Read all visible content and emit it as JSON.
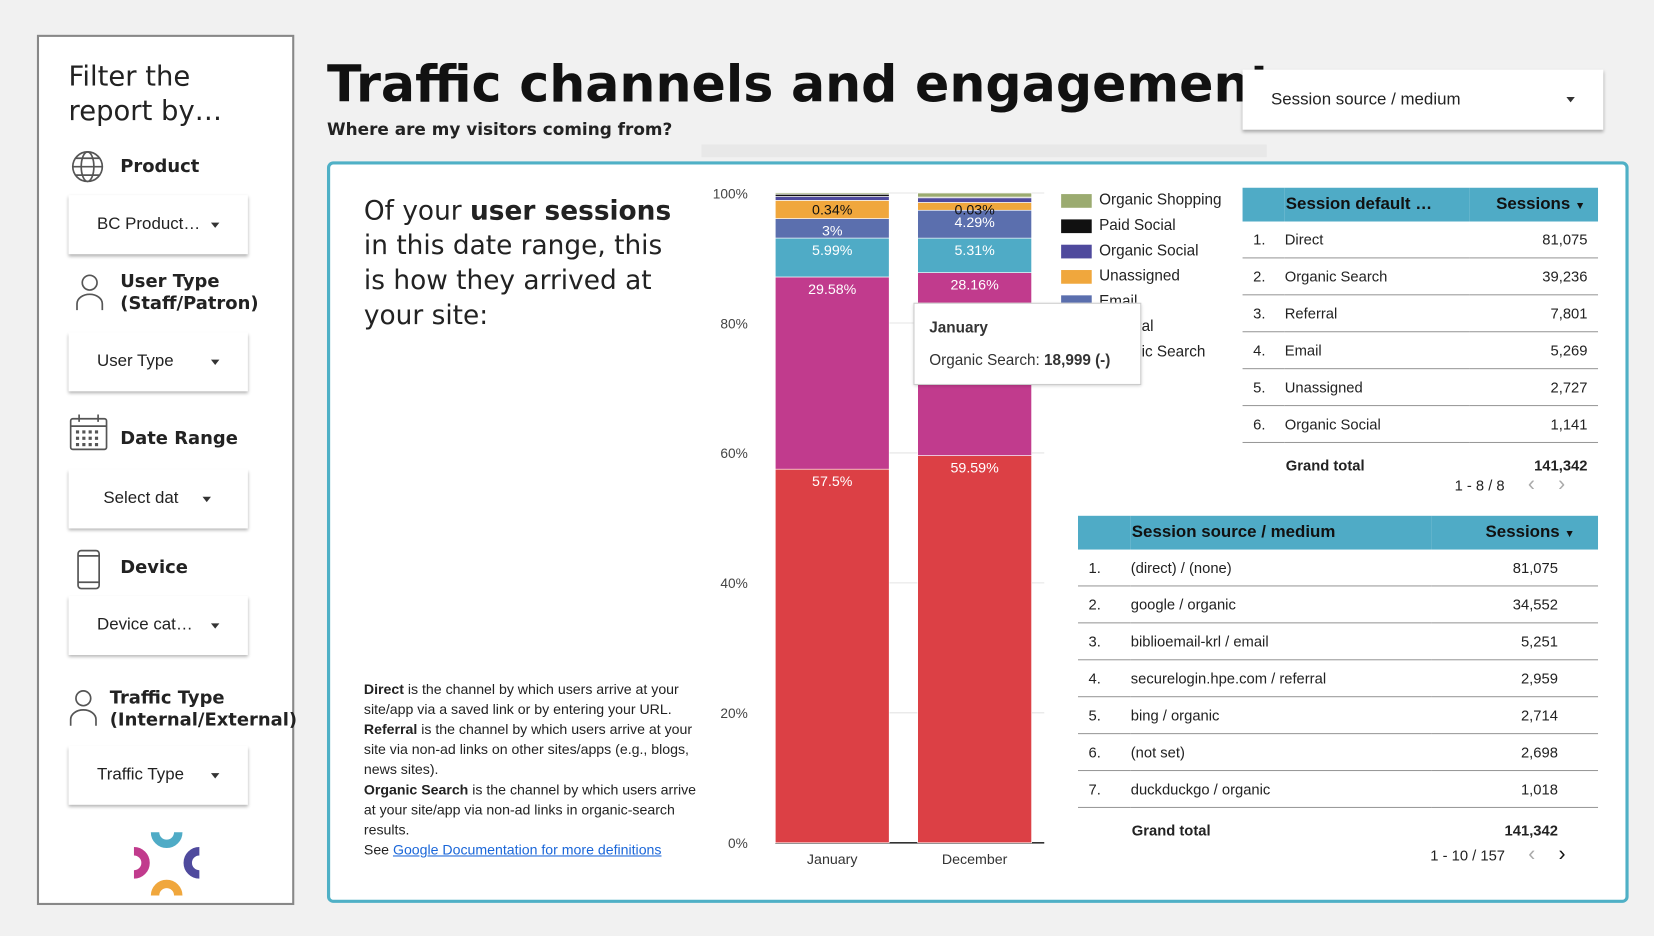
{
  "sidebar": {
    "title": "Filter the report by…",
    "filters": [
      {
        "label": "Product",
        "icon": "globe-icon",
        "value": "BC Product…"
      },
      {
        "label": "User Type (Staff/Patron)",
        "icon": "person-icon",
        "value": "User Type"
      },
      {
        "label": "Date Range",
        "icon": "calendar-icon",
        "value": "Select dat"
      },
      {
        "label": "Device",
        "icon": "phone-icon",
        "value": "Device cat…"
      },
      {
        "label": "Traffic Type (Internal/External)",
        "icon": "person-icon",
        "value": "Traffic Type"
      }
    ]
  },
  "header": {
    "title": "Traffic channels and engagement",
    "subtitle": "Where are my visitors coming from?",
    "dimension_dropdown": "Session source / medium"
  },
  "intro": {
    "pre": "Of your ",
    "bold": "user sessions",
    "post": " in this date range, this is how they arrived at your site:"
  },
  "definitions": {
    "direct_term": "Direct",
    "direct_text": " is the channel by which users arrive at your site/app via a saved link or by entering your URL.",
    "referral_term": "Referral",
    "referral_text": " is the channel by which users arrive at your site via non-ad links on other sites/apps (e.g., blogs, news sites).",
    "organic_term": "Organic Search",
    "organic_text": " is the channel by which users arrive at your site/app via non-ad links in organic-search results.",
    "see": "See ",
    "link": "Google Documentation for more definitions"
  },
  "tooltip": {
    "title": "January",
    "label": "Organic Search: ",
    "value": "18,999 (-)"
  },
  "chart_data": {
    "type": "bar",
    "stacked": true,
    "percent": true,
    "categories": [
      "January",
      "December"
    ],
    "yticks": [
      "0%",
      "20%",
      "40%",
      "60%",
      "80%",
      "100%"
    ],
    "ylim": [
      0,
      100
    ],
    "grid": true,
    "legend": "right",
    "series": [
      {
        "name": "Direct",
        "color": "#dc4045",
        "values": [
          57.5,
          59.59
        ],
        "labels": [
          "57.5%",
          "59.59%"
        ]
      },
      {
        "name": "Organic Search",
        "color": "#c13b8d",
        "values": [
          29.58,
          28.16
        ],
        "labels": [
          "29.58%",
          "28.16%"
        ]
      },
      {
        "name": "Referral",
        "color": "#4fabc6",
        "values": [
          5.99,
          5.31
        ],
        "labels": [
          "5.99%",
          "5.31%"
        ]
      },
      {
        "name": "Email",
        "color": "#5b6fae",
        "values": [
          3,
          4.29
        ],
        "labels": [
          "3%",
          "4.29%"
        ]
      },
      {
        "name": "Unassigned",
        "color": "#f0a73d",
        "values": [
          2.8,
          1.2
        ],
        "labels": [
          "",
          ""
        ]
      },
      {
        "name": "Organic Social",
        "color": "#4f4a9d",
        "values": [
          0.6,
          0.8
        ],
        "labels": [
          "",
          ""
        ]
      },
      {
        "name": "Paid Social",
        "color": "#111111",
        "values": [
          0.34,
          0.03
        ],
        "labels": [
          "0.34%",
          "0.03%"
        ]
      },
      {
        "name": "Organic Shopping",
        "color": "#9bab70",
        "values": [
          0.19,
          0.62
        ],
        "labels": [
          "",
          ""
        ]
      }
    ]
  },
  "channel_table": {
    "headers": [
      "Session default …",
      "Sessions"
    ],
    "rows": [
      [
        "1.",
        "Direct",
        "81,075"
      ],
      [
        "2.",
        "Organic Search",
        "39,236"
      ],
      [
        "3.",
        "Referral",
        "7,801"
      ],
      [
        "4.",
        "Email",
        "5,269"
      ],
      [
        "5.",
        "Unassigned",
        "2,727"
      ],
      [
        "6.",
        "Organic Social",
        "1,141"
      ]
    ],
    "total_label": "Grand total",
    "total": "141,342",
    "pager": "1 - 8 / 8"
  },
  "source_table": {
    "headers": [
      "Session source / medium",
      "Sessions"
    ],
    "rows": [
      [
        "1.",
        "(direct) / (none)",
        "81,075"
      ],
      [
        "2.",
        "google / organic",
        "34,552"
      ],
      [
        "3.",
        "biblioemail-krl / email",
        "5,251"
      ],
      [
        "4.",
        "securelogin.hpe.com / referral",
        "2,959"
      ],
      [
        "5.",
        "bing / organic",
        "2,714"
      ],
      [
        "6.",
        "(not set)",
        "2,698"
      ],
      [
        "7.",
        "duckduckgo / organic",
        "1,018"
      ]
    ],
    "total_label": "Grand total",
    "total": "141,342",
    "pager": "1 - 10 / 157"
  }
}
